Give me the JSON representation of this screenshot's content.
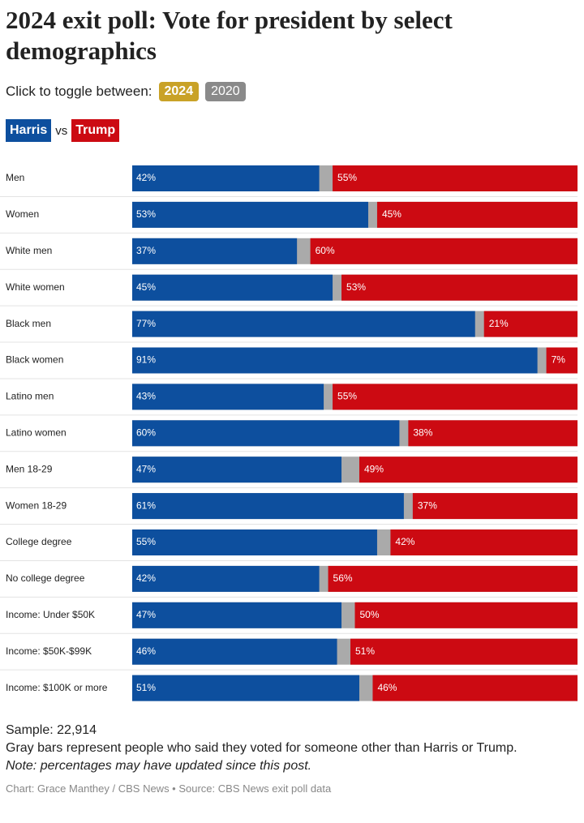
{
  "chart_data": {
    "type": "bar",
    "orientation": "horizontal",
    "stacked": true,
    "title": "2024 exit poll: Vote for president by select demographics",
    "toggle_label": "Click to toggle between:",
    "toggle_options": [
      {
        "label": "2024",
        "color": "#c9a227"
      },
      {
        "label": "2020",
        "color": "#8a8a8a"
      }
    ],
    "legend_joiner": "vs",
    "categories": [
      "Men",
      "Women",
      "White men",
      "White women",
      "Black men",
      "Black women",
      "Latino men",
      "Latino women",
      "Men 18-29",
      "Women 18-29",
      "College degree",
      "No college degree",
      "Income: Under $50K",
      "Income: $50K-$99K",
      "Income: $100K or more"
    ],
    "xlim": [
      0,
      100
    ],
    "series": [
      {
        "name": "Harris",
        "color": "#0d4f9e",
        "values": [
          42,
          53,
          37,
          45,
          77,
          91,
          43,
          60,
          47,
          61,
          55,
          42,
          47,
          46,
          51
        ],
        "value_labels": [
          "42%",
          "53%",
          "37%",
          "45%",
          "77%",
          "91%",
          "43%",
          "60%",
          "47%",
          "61%",
          "55%",
          "42%",
          "47%",
          "46%",
          "51%"
        ]
      },
      {
        "name": "Trump",
        "color": "#cc0a12",
        "values": [
          55,
          45,
          60,
          53,
          21,
          7,
          55,
          38,
          49,
          37,
          42,
          56,
          50,
          51,
          46
        ],
        "value_labels": [
          "55%",
          "45%",
          "60%",
          "53%",
          "21%",
          "7%",
          "55%",
          "38%",
          "49%",
          "37%",
          "42%",
          "56%",
          "50%",
          "51%",
          "46%"
        ]
      }
    ],
    "sample": "Sample: 22,914",
    "notes": [
      "Gray bars represent people who said they voted for someone other than Harris or Trump.",
      "Note: percentages may have updated since this post."
    ],
    "credit": "Chart: Grace Manthey / CBS News • Source: CBS News exit poll data"
  }
}
